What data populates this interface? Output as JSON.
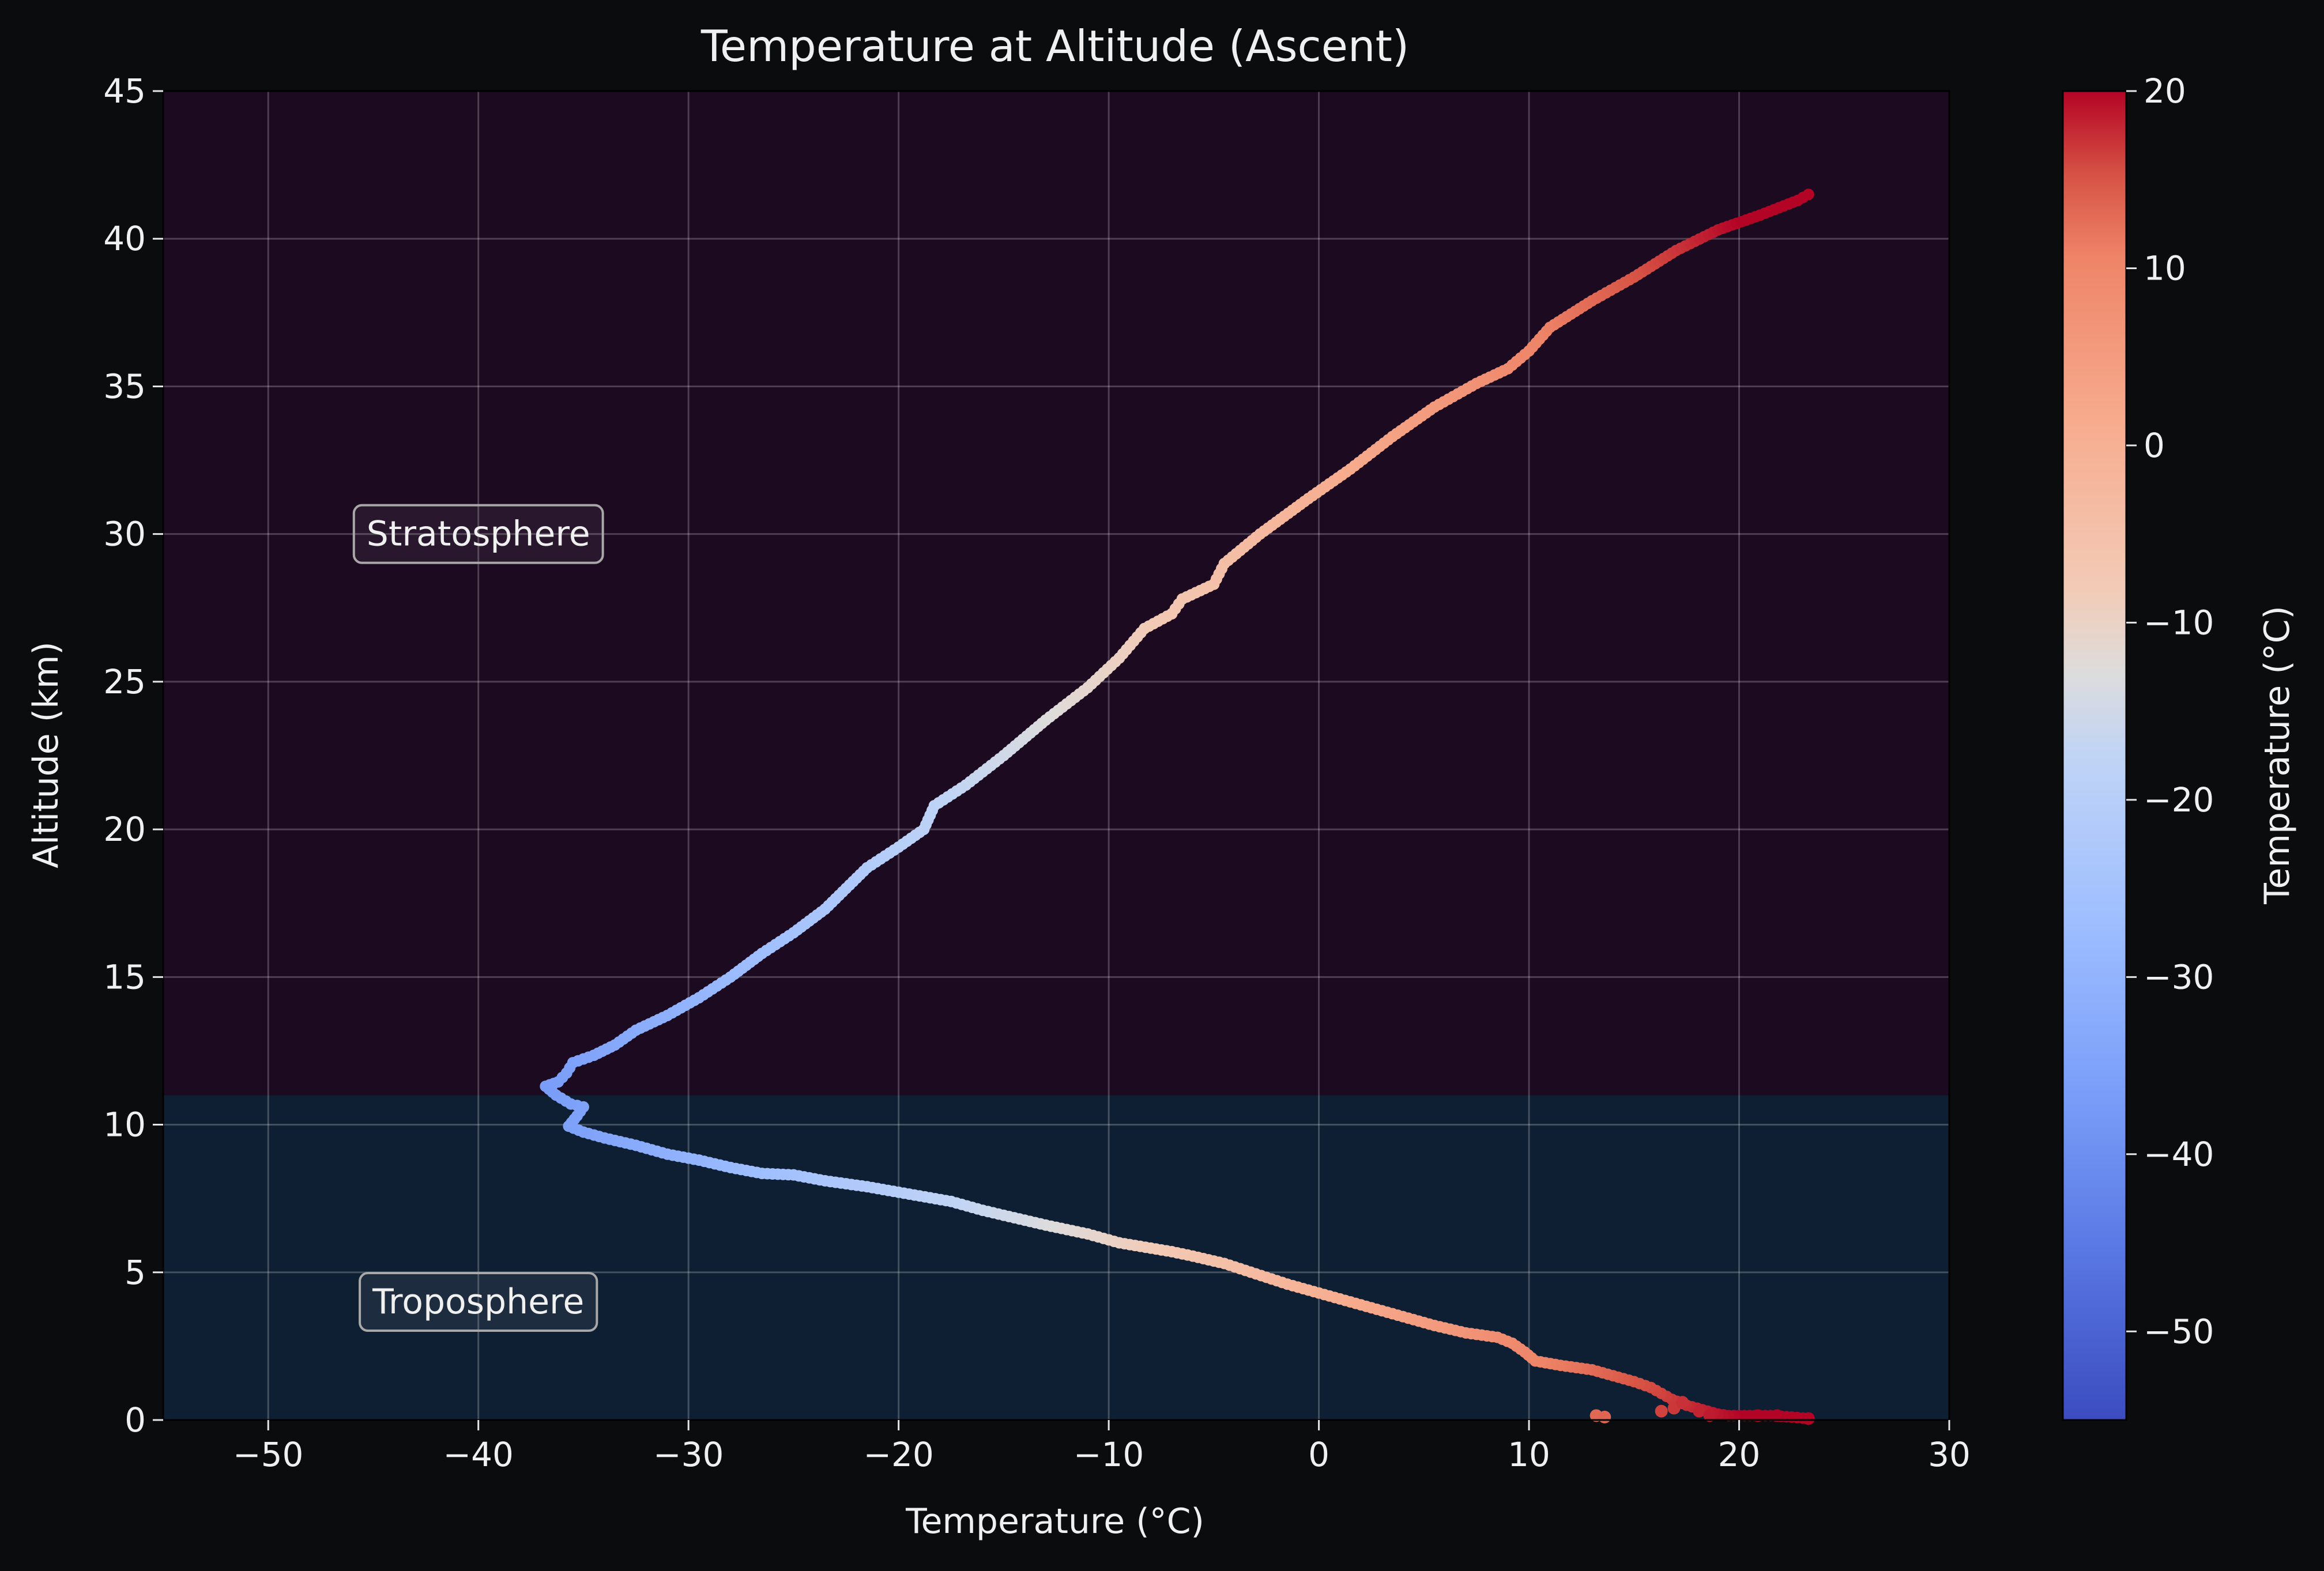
{
  "chart_data": {
    "type": "scatter",
    "title": "Temperature at Altitude (Ascent)",
    "xlabel": "Temperature (°C)",
    "ylabel": "Altitude (km)",
    "xlim": [
      -55,
      30
    ],
    "ylim": [
      0,
      45
    ],
    "xticks": [
      -50,
      -40,
      -30,
      -20,
      -10,
      0,
      10,
      20,
      30
    ],
    "yticks": [
      0,
      5,
      10,
      15,
      20,
      25,
      30,
      35,
      40,
      45
    ],
    "xtick_labels": [
      "−50",
      "−40",
      "−30",
      "−20",
      "−10",
      "0",
      "10",
      "20",
      "30"
    ],
    "ytick_labels": [
      "0",
      "5",
      "10",
      "15",
      "20",
      "25",
      "30",
      "35",
      "40",
      "45"
    ],
    "grid": true,
    "colormap": "coolwarm",
    "colorbar": {
      "label": "Temperature (°C)",
      "range": [
        -55,
        20
      ],
      "ticks": [
        -50,
        -40,
        -30,
        -20,
        -10,
        0,
        10,
        20
      ],
      "tick_labels": [
        "−50",
        "−40",
        "−30",
        "−20",
        "−10",
        "0",
        "10",
        "20"
      ]
    },
    "regions": [
      {
        "name": "Troposphere",
        "y_from": 0,
        "y_to": 11,
        "color": "#0f1f33",
        "label_x": -40,
        "label_y": 4
      },
      {
        "name": "Stratosphere",
        "y_from": 11,
        "y_to": 45,
        "color": "#1c0a20",
        "label_x": -40,
        "label_y": 30
      }
    ],
    "series": [
      {
        "profile": [
          [
            23.3,
            0.05
          ],
          [
            22.5,
            0.1
          ],
          [
            21.5,
            0.15
          ],
          [
            20.5,
            0.15
          ],
          [
            19.5,
            0.15
          ],
          [
            19.0,
            0.2
          ],
          [
            18.5,
            0.3
          ],
          [
            17.5,
            0.5
          ],
          [
            16.8,
            0.7
          ],
          [
            16.3,
            0.9
          ],
          [
            15.8,
            1.1
          ],
          [
            15.0,
            1.3
          ],
          [
            14.0,
            1.5
          ],
          [
            13.0,
            1.7
          ],
          [
            11.5,
            1.85
          ],
          [
            10.3,
            2.0
          ],
          [
            9.8,
            2.3
          ],
          [
            9.2,
            2.6
          ],
          [
            8.5,
            2.8
          ],
          [
            7.0,
            2.95
          ],
          [
            5.5,
            3.2
          ],
          [
            4.0,
            3.5
          ],
          [
            2.5,
            3.8
          ],
          [
            1.0,
            4.1
          ],
          [
            0.0,
            4.3
          ],
          [
            -1.5,
            4.6
          ],
          [
            -3.0,
            4.95
          ],
          [
            -4.5,
            5.3
          ],
          [
            -6.0,
            5.55
          ],
          [
            -7.0,
            5.7
          ],
          [
            -9.5,
            6.0
          ],
          [
            -11.0,
            6.3
          ],
          [
            -13.0,
            6.6
          ],
          [
            -14.5,
            6.85
          ],
          [
            -16.0,
            7.1
          ],
          [
            -17.5,
            7.4
          ],
          [
            -19.5,
            7.65
          ],
          [
            -21.5,
            7.9
          ],
          [
            -23.5,
            8.1
          ],
          [
            -25.0,
            8.3
          ],
          [
            -26.5,
            8.35
          ],
          [
            -28.0,
            8.55
          ],
          [
            -29.5,
            8.8
          ],
          [
            -31.0,
            9.0
          ],
          [
            -32.5,
            9.3
          ],
          [
            -34.0,
            9.55
          ],
          [
            -35.0,
            9.75
          ],
          [
            -35.7,
            9.95
          ],
          [
            -35.3,
            10.3
          ],
          [
            -35.0,
            10.6
          ],
          [
            -35.6,
            10.7
          ],
          [
            -36.3,
            11.0
          ],
          [
            -36.8,
            11.3
          ],
          [
            -36.2,
            11.45
          ],
          [
            -35.8,
            11.75
          ],
          [
            -35.5,
            12.1
          ],
          [
            -34.5,
            12.35
          ],
          [
            -33.5,
            12.7
          ],
          [
            -32.5,
            13.2
          ],
          [
            -31.0,
            13.7
          ],
          [
            -29.5,
            14.3
          ],
          [
            -28.0,
            15.0
          ],
          [
            -26.5,
            15.8
          ],
          [
            -25.0,
            16.5
          ],
          [
            -23.5,
            17.3
          ],
          [
            -22.5,
            18.0
          ],
          [
            -21.5,
            18.7
          ],
          [
            -20.0,
            19.4
          ],
          [
            -18.8,
            20.0
          ],
          [
            -18.3,
            20.8
          ],
          [
            -16.8,
            21.5
          ],
          [
            -15.0,
            22.5
          ],
          [
            -13.0,
            23.7
          ],
          [
            -11.0,
            24.8
          ],
          [
            -9.5,
            25.8
          ],
          [
            -8.3,
            26.8
          ],
          [
            -7.0,
            27.3
          ],
          [
            -6.5,
            27.8
          ],
          [
            -5.0,
            28.3
          ],
          [
            -4.5,
            29.0
          ],
          [
            -2.8,
            30.0
          ],
          [
            -0.5,
            31.2
          ],
          [
            1.5,
            32.2
          ],
          [
            3.5,
            33.3
          ],
          [
            5.5,
            34.3
          ],
          [
            7.5,
            35.1
          ],
          [
            9.0,
            35.6
          ],
          [
            10.0,
            36.2
          ],
          [
            11.0,
            37.0
          ],
          [
            13.0,
            37.9
          ],
          [
            15.0,
            38.7
          ],
          [
            17.0,
            39.6
          ],
          [
            19.0,
            40.3
          ],
          [
            21.0,
            40.8
          ],
          [
            22.8,
            41.3
          ],
          [
            23.3,
            41.5
          ]
        ],
        "scattered_points": [
          [
            13.2,
            0.15
          ],
          [
            13.6,
            0.1
          ],
          [
            16.3,
            0.3
          ],
          [
            16.9,
            0.4
          ],
          [
            17.3,
            0.6
          ],
          [
            18.1,
            0.3
          ],
          [
            18.6,
            0.15
          ],
          [
            20.9,
            0.15
          ],
          [
            21.8,
            0.15
          ],
          [
            23.3,
            0.05
          ]
        ]
      }
    ]
  }
}
